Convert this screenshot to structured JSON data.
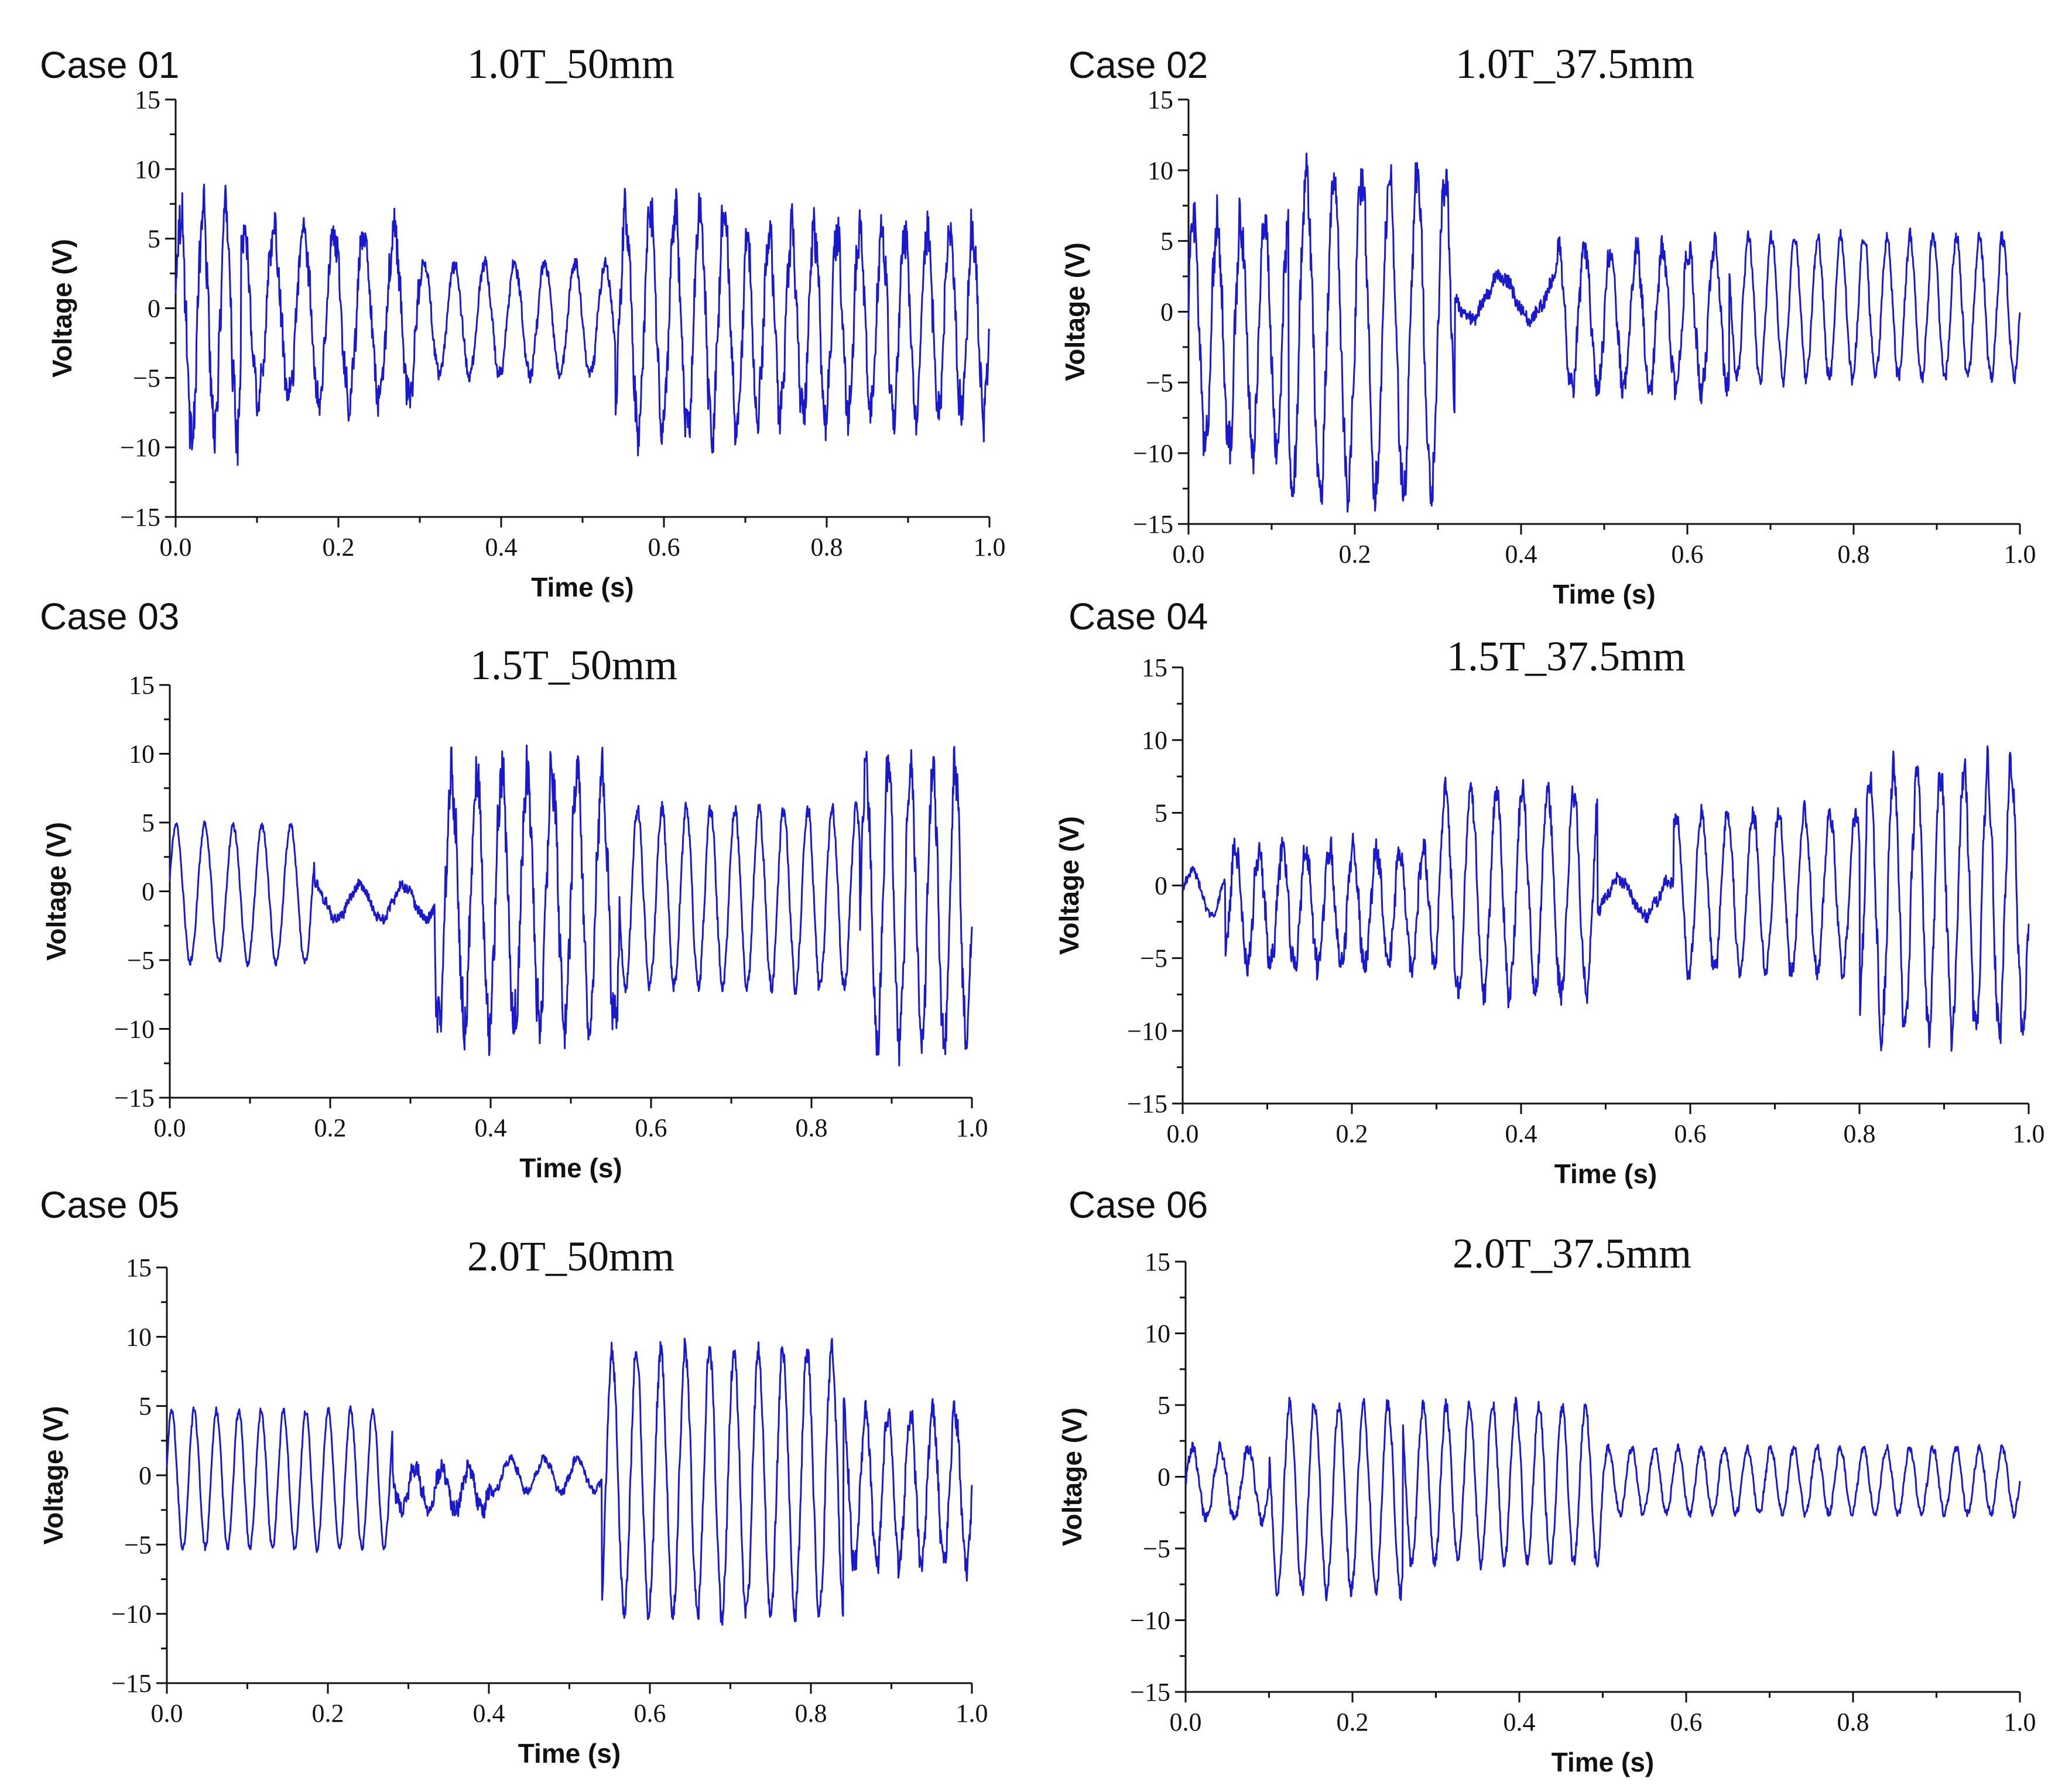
{
  "figure": {
    "panels": [
      {
        "case_label": "Case 01",
        "subtitle": "1.0T_50mm"
      },
      {
        "case_label": "Case 02",
        "subtitle": "1.0T_37.5mm"
      },
      {
        "case_label": "Case 03",
        "subtitle": "1.5T_50mm"
      },
      {
        "case_label": "Case 04",
        "subtitle": "1.5T_37.5mm"
      },
      {
        "case_label": "Case 05",
        "subtitle": "2.0T_50mm"
      },
      {
        "case_label": "Case 06",
        "subtitle": "2.0T_37.5mm"
      }
    ],
    "line_color": "#1a1acc"
  },
  "chart_data": [
    {
      "type": "line",
      "title": "1.0T_50mm",
      "xlabel": "Time (s)",
      "ylabel": "Voltage (V)",
      "xlim": [
        0,
        1
      ],
      "ylim": [
        -15,
        15
      ],
      "xticks": [
        "0.0",
        "0.2",
        "0.4",
        "0.6",
        "0.8",
        "1.0"
      ],
      "yticks": [
        "15",
        "10",
        "5",
        "0",
        "−5",
        "−10",
        "−15"
      ],
      "series": [
        {
          "name": "Voltage",
          "segments": [
            {
              "t0": 0.0,
              "t1": 0.08,
              "freq": 36,
              "amp": 8,
              "noise": 3.0,
              "offset": -1,
              "phase": 0.2
            },
            {
              "t0": 0.08,
              "t1": 0.3,
              "freq": 27,
              "amp": 6,
              "noise": 2.0,
              "offset": -0.5,
              "phase": 0.0
            },
            {
              "t0": 0.3,
              "t1": 0.54,
              "freq": 27,
              "amp": 4,
              "noise": 0.8,
              "offset": -0.8,
              "phase": 0.0
            },
            {
              "t0": 0.54,
              "t1": 0.7,
              "freq": 33,
              "amp": 8,
              "noise": 2.5,
              "offset": -1,
              "phase": 0.0
            },
            {
              "t0": 0.7,
              "t1": 1.0,
              "freq": 36,
              "amp": 6.5,
              "noise": 2.5,
              "offset": -1,
              "phase": 0.0
            }
          ]
        }
      ]
    },
    {
      "type": "line",
      "title": "1.0T_37.5mm",
      "xlabel": "Time (s)",
      "ylabel": "Voltage (V)",
      "xlim": [
        0,
        1
      ],
      "ylim": [
        -15,
        15
      ],
      "xticks": [
        "0.0",
        "0.2",
        "0.4",
        "0.6",
        "0.8",
        "1.0"
      ],
      "yticks": [
        "15",
        "10",
        "5",
        "0",
        "−5",
        "−10",
        "−15"
      ],
      "series": [
        {
          "name": "Voltage",
          "segments": [
            {
              "t0": 0.0,
              "t1": 0.12,
              "freq": 35,
              "amp": 8,
              "noise": 2.5,
              "offset": -1.5,
              "phase": 0.3
            },
            {
              "t0": 0.12,
              "t1": 0.32,
              "freq": 30,
              "amp": 11,
              "noise": 2.5,
              "offset": -1.5,
              "phase": 0.0
            },
            {
              "t0": 0.32,
              "t1": 0.44,
              "freq": 14,
              "amp": 1.5,
              "noise": 0.8,
              "offset": 1.0,
              "phase": 0.0
            },
            {
              "t0": 0.44,
              "t1": 0.65,
              "freq": 32,
              "amp": 5,
              "noise": 1.5,
              "offset": -0.5,
              "phase": 0.0
            },
            {
              "t0": 0.65,
              "t1": 1.0,
              "freq": 36,
              "amp": 5,
              "noise": 0.8,
              "offset": 0.3,
              "phase": 0.0
            }
          ]
        }
      ]
    },
    {
      "type": "line",
      "title": "1.5T_50mm",
      "xlabel": "Time (s)",
      "ylabel": "Voltage (V)",
      "xlim": [
        0,
        1
      ],
      "ylim": [
        -15,
        15
      ],
      "xticks": [
        "0.0",
        "0.2",
        "0.4",
        "0.6",
        "0.8",
        "1.0"
      ],
      "yticks": [
        "15",
        "10",
        "5",
        "0",
        "−5",
        "−10",
        "−15"
      ],
      "series": [
        {
          "name": "Voltage",
          "segments": [
            {
              "t0": 0.0,
              "t1": 0.18,
              "freq": 28,
              "amp": 5,
              "noise": 0.4,
              "offset": -0.2,
              "phase": 0.2
            },
            {
              "t0": 0.18,
              "t1": 0.33,
              "freq": 18,
              "amp": 1.2,
              "noise": 0.6,
              "offset": -0.8,
              "phase": 0.0
            },
            {
              "t0": 0.33,
              "t1": 0.56,
              "freq": 32,
              "amp": 9,
              "noise": 3.0,
              "offset": -0.5,
              "phase": 0.0
            },
            {
              "t0": 0.56,
              "t1": 0.86,
              "freq": 33,
              "amp": 6.5,
              "noise": 0.8,
              "offset": -0.5,
              "phase": 0.0
            },
            {
              "t0": 0.86,
              "t1": 1.0,
              "freq": 36,
              "amp": 10,
              "noise": 2.5,
              "offset": -1,
              "phase": 0.0
            }
          ]
        }
      ]
    },
    {
      "type": "line",
      "title": "1.5T_37.5mm",
      "xlabel": "Time (s)",
      "ylabel": "Voltage (V)",
      "xlim": [
        0,
        1
      ],
      "ylim": [
        -15,
        15
      ],
      "xticks": [
        "0.0",
        "0.2",
        "0.4",
        "0.6",
        "0.8",
        "1.0"
      ],
      "yticks": [
        "15",
        "10",
        "5",
        "0",
        "−5",
        "−10",
        "−15"
      ],
      "series": [
        {
          "name": "Voltage",
          "segments": [
            {
              "t0": 0.0,
              "t1": 0.05,
              "freq": 22,
              "amp": 1.5,
              "noise": 0.5,
              "offset": -0.5,
              "phase": 0.0
            },
            {
              "t0": 0.05,
              "t1": 0.3,
              "freq": 36,
              "amp": 4,
              "noise": 1.5,
              "offset": -1.5,
              "phase": 0.0
            },
            {
              "t0": 0.3,
              "t1": 0.49,
              "freq": 33,
              "amp": 7,
              "noise": 1.5,
              "offset": -0.5,
              "phase": 0.0
            },
            {
              "t0": 0.49,
              "t1": 0.58,
              "freq": 16,
              "amp": 1.2,
              "noise": 0.7,
              "offset": -0.8,
              "phase": 0.0
            },
            {
              "t0": 0.58,
              "t1": 0.8,
              "freq": 33,
              "amp": 5.5,
              "noise": 1.0,
              "offset": -0.5,
              "phase": 0.0
            },
            {
              "t0": 0.8,
              "t1": 1.0,
              "freq": 36,
              "amp": 9,
              "noise": 2.0,
              "offset": -1,
              "phase": 0.0
            }
          ]
        }
      ]
    },
    {
      "type": "line",
      "title": "2.0T_50mm",
      "xlabel": "Time (s)",
      "ylabel": "Voltage (V)",
      "xlim": [
        0,
        1
      ],
      "ylim": [
        -15,
        15
      ],
      "xticks": [
        "0.0",
        "0.2",
        "0.4",
        "0.6",
        "0.8",
        "1.0"
      ],
      "yticks": [
        "15",
        "10",
        "5",
        "0",
        "−5",
        "−10",
        "−15"
      ],
      "series": [
        {
          "name": "Voltage",
          "segments": [
            {
              "t0": 0.0,
              "t1": 0.28,
              "freq": 36,
              "amp": 5,
              "noise": 0.4,
              "offset": -0.3,
              "phase": 0.2
            },
            {
              "t0": 0.28,
              "t1": 0.4,
              "freq": 30,
              "amp": 1.5,
              "noise": 1.0,
              "offset": -1,
              "phase": 0.0
            },
            {
              "t0": 0.4,
              "t1": 0.54,
              "freq": 24,
              "amp": 1.2,
              "noise": 0.5,
              "offset": 0.0,
              "phase": 0.0
            },
            {
              "t0": 0.54,
              "t1": 0.84,
              "freq": 33,
              "amp": 9.5,
              "noise": 1.2,
              "offset": -0.5,
              "phase": 0.0
            },
            {
              "t0": 0.84,
              "t1": 1.0,
              "freq": 36,
              "amp": 5.5,
              "noise": 1.5,
              "offset": -1,
              "phase": 0.0
            }
          ]
        }
      ]
    },
    {
      "type": "line",
      "title": "2.0T_37.5mm",
      "xlabel": "Time (s)",
      "ylabel": "Voltage (V)",
      "xlim": [
        0,
        1
      ],
      "ylim": [
        -15,
        15
      ],
      "xticks": [
        "0.0",
        "0.2",
        "0.4",
        "0.6",
        "0.8",
        "1.0"
      ],
      "yticks": [
        "15",
        "10",
        "5",
        "0",
        "−5",
        "−10",
        "−15"
      ],
      "series": [
        {
          "name": "Voltage",
          "segments": [
            {
              "t0": 0.0,
              "t1": 0.1,
              "freq": 30,
              "amp": 2.5,
              "noise": 0.6,
              "offset": -0.5,
              "phase": 0.0
            },
            {
              "t0": 0.1,
              "t1": 0.26,
              "freq": 34,
              "amp": 6.5,
              "noise": 0.8,
              "offset": -1.5,
              "phase": 0.0
            },
            {
              "t0": 0.26,
              "t1": 0.5,
              "freq": 36,
              "amp": 5.5,
              "noise": 0.7,
              "offset": -0.5,
              "phase": 0.0
            },
            {
              "t0": 0.5,
              "t1": 1.0,
              "freq": 36,
              "amp": 2.3,
              "noise": 0.4,
              "offset": -0.3,
              "phase": 0.0
            }
          ]
        }
      ]
    }
  ]
}
